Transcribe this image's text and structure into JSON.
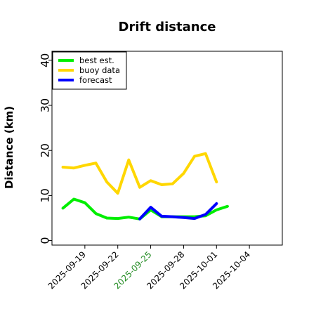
{
  "chart_data": {
    "type": "line",
    "title": "Drift distance",
    "xlabel": "",
    "ylabel": "Distance (km)",
    "xlim": [
      "2025-09-16",
      "2025-10-07"
    ],
    "ylim": [
      -1,
      42
    ],
    "yticks": [
      0,
      10,
      20,
      30,
      40
    ],
    "xticks": [
      "2025-09-19",
      "2025-09-22",
      "2025-09-25",
      "2025-09-28",
      "2025-10-01",
      "2025-10-04"
    ],
    "highlight_tick": "2025-09-25",
    "highlight_color": "#228B22",
    "grid": false,
    "legend_position": "top-left",
    "series": [
      {
        "name": "best est.",
        "color": "#00ee00",
        "x": [
          "2025-09-17",
          "2025-09-18",
          "2025-09-19",
          "2025-09-20",
          "2025-09-21",
          "2025-09-22",
          "2025-09-23",
          "2025-09-24",
          "2025-09-25",
          "2025-09-26",
          "2025-09-27",
          "2025-09-28",
          "2025-09-29",
          "2025-09-30",
          "2025-10-01",
          "2025-10-02"
        ],
        "values": [
          7.2,
          9.2,
          8.4,
          6.0,
          5.0,
          4.9,
          5.2,
          4.8,
          6.8,
          5.3,
          5.3,
          5.3,
          5.3,
          5.5,
          6.8,
          7.6
        ]
      },
      {
        "name": "buoy data",
        "color": "#ffd700",
        "x": [
          "2025-09-17",
          "2025-09-18",
          "2025-09-19",
          "2025-09-20",
          "2025-09-21",
          "2025-09-22",
          "2025-09-23",
          "2025-09-24",
          "2025-09-25",
          "2025-09-26",
          "2025-09-27",
          "2025-09-28",
          "2025-09-29",
          "2025-09-30",
          "2025-10-01",
          "2025-10-02"
        ],
        "values": [
          16.3,
          16.1,
          16.7,
          17.2,
          13.0,
          10.5,
          17.9,
          11.8,
          13.3,
          12.4,
          12.6,
          14.9,
          18.7,
          19.3,
          13.0,
          null
        ]
      },
      {
        "name": "forecast",
        "color": "#0000ff",
        "x": [
          "2025-09-24",
          "2025-09-25",
          "2025-09-26",
          "2025-09-27",
          "2025-09-28",
          "2025-09-29",
          "2025-09-30",
          "2025-10-01",
          "2025-10-02"
        ],
        "values": [
          4.8,
          7.4,
          5.4,
          5.3,
          5.1,
          4.9,
          5.8,
          8.2,
          null
        ]
      }
    ]
  }
}
